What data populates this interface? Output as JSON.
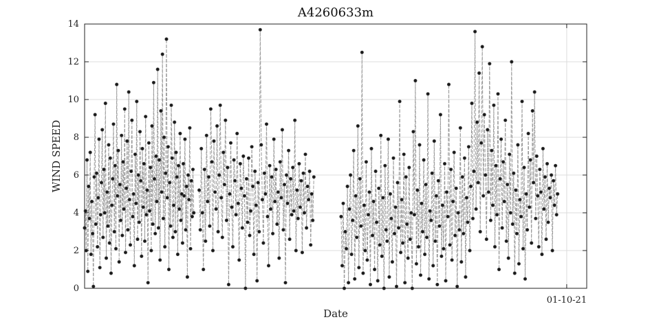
{
  "chart_data": {
    "type": "line",
    "title": "A4260633m",
    "xlabel": "Date",
    "ylabel": "WIND SPEED",
    "ylim": [
      0,
      14
    ],
    "yticks": [
      "0",
      "2",
      "4",
      "6",
      "8",
      "10",
      "12",
      "14"
    ],
    "xticks": [
      "01-10-21"
    ],
    "grid": true,
    "series": [
      {
        "name": "wind speed",
        "line_color": "#9a9a9a",
        "marker_color": "#1a1a1a",
        "segments": [
          {
            "start_day": 0,
            "end_day": 60,
            "values": [
              3.2,
              4.1,
              2.0,
              6.8,
              0.9,
              5.4,
              3.7,
              7.2,
              1.8,
              4.6,
              2.9,
              0.1,
              5.9,
              9.2,
              3.4,
              6.1,
              2.2,
              4.8,
              7.9,
              1.1,
              3.9,
              5.6,
              8.4,
              2.7,
              6.3,
              4.0,
              9.8,
              1.6,
              5.1,
              3.3,
              7.6,
              2.4,
              6.9,
              0.8,
              4.4,
              5.8,
              8.7,
              3.0,
              6.5,
              2.1,
              10.8,
              4.9,
              7.3,
              1.4,
              5.5,
              3.6,
              8.1,
              2.8,
              6.7,
              4.2,
              9.5,
              1.9,
              5.3,
              7.8,
              3.1,
              10.4,
              4.7,
              2.3,
              6.2,
              8.9,
              3.8,
              5.0,
              1.2,
              7.1,
              4.5,
              9.9,
              2.6,
              6.0,
              3.5,
              8.3,
              5.7,
              1.7,
              7.4,
              4.3,
              6.6,
              2.5,
              9.1,
              3.9,
              5.2,
              0.3,
              7.7,
              4.1,
              6.4,
              2.0,
              8.6,
              3.4,
              10.9,
              5.8,
              2.9,
              7.0,
              4.6,
              11.6,
              3.2,
              6.8,
              1.5,
              9.4,
              5.1,
              12.4,
              3.7,
              8.0,
              2.2,
              6.1,
              13.2,
              4.8,
              7.5,
              1.0,
              5.6,
              3.3,
              9.7,
              6.9,
              2.7,
              4.4,
              8.8,
              3.0,
              7.2,
              5.9,
              1.8,
              6.5,
              4.2,
              8.2,
              3.6,
              5.0,
              2.4,
              6.6,
              4.9,
              7.9,
              3.1,
              5.4,
              0.6,
              6.0,
              4.7,
              8.5,
              2.1,
              5.7,
              3.8,
              6.3,
              4.0
            ]
          },
          {
            "start_day": 63,
            "end_day": 126,
            "values": [
              5.2,
              3.1,
              7.4,
              4.0,
              1.0,
              6.3,
              2.5,
              8.1,
              4.6,
              5.9,
              3.3,
              9.5,
              6.7,
              2.0,
              7.8,
              5.1,
              4.2,
              8.6,
              3.0,
              6.0,
              9.7,
              4.8,
              2.7,
              7.2,
              5.5,
              8.9,
              3.6,
              6.4,
              0.2,
              5.0,
              7.7,
              4.3,
              2.2,
              6.8,
              5.7,
              3.9,
              8.2,
              4.5,
              1.5,
              6.6,
              5.3,
              3.2,
              7.0,
              4.9,
              0.0,
              5.8,
              3.5,
              6.9,
              2.8,
              4.1,
              7.5,
              5.4,
              1.8,
              6.2,
              4.4,
              0.4,
              5.6,
              3.0,
              13.7,
              7.6,
              4.7,
              2.4,
              6.1,
              5.0,
              8.7,
              3.8,
              1.2,
              6.5,
              4.2,
              5.9,
              2.9,
              7.9,
              4.6,
              6.3,
              3.4,
              5.1,
              1.6,
              6.7,
              4.8,
              8.4,
              3.1,
              5.5,
              0.3,
              6.0,
              4.5,
              7.3,
              2.6,
              5.8,
              3.9,
              6.4,
              4.1,
              8.9,
              2.0,
              5.2,
              3.7,
              6.6,
              4.3,
              5.7,
              1.9,
              6.1,
              4.0,
              7.1,
              3.2,
              5.4,
              4.7,
              6.2,
              2.3,
              5.0,
              3.6,
              5.9
            ]
          },
          {
            "start_day": 141,
            "end_day": 260,
            "values": [
              3.8,
              1.2,
              4.5,
              0.0,
              3.0,
              2.1,
              5.4,
              0.3,
              4.2,
              6.0,
              1.8,
              3.6,
              7.3,
              0.5,
              4.9,
              2.7,
              8.6,
              1.1,
              5.8,
              3.3,
              12.5,
              0.8,
              4.4,
              2.0,
              6.7,
              1.5,
              3.9,
              5.1,
              0.2,
              7.4,
              2.8,
              4.6,
              1.0,
              6.2,
              3.5,
              0.4,
              5.3,
              2.3,
              8.1,
              1.7,
              4.8,
              0.0,
              6.5,
              3.1,
              2.5,
              7.9,
              0.6,
              5.0,
              3.7,
              1.4,
              6.9,
              2.9,
              4.3,
              0.1,
              5.6,
              3.2,
              9.9,
              1.9,
              4.7,
              2.4,
              7.1,
              0.3,
              5.9,
              3.4,
              1.6,
              6.4,
              2.6,
              4.0,
              0.0,
              8.3,
              3.9,
              11.0,
              1.3,
              5.2,
              2.2,
              7.6,
              0.7,
              4.5,
              3.0,
              6.8,
              1.8,
              5.5,
              2.7,
              10.3,
              0.5,
              4.1,
              3.6,
              6.1,
              1.2,
              7.8,
              2.5,
              4.9,
              0.2,
              5.7,
              3.3,
              9.2,
              1.7,
              4.4,
              2.1,
              6.6,
              0.4,
              5.1,
              3.8,
              10.8,
              2.3,
              6.3,
              1.5,
              4.6,
              7.2,
              2.8,
              5.3,
              0.1,
              4.0,
              3.1,
              8.5,
              1.4,
              5.9,
              2.9,
              6.9,
              0.6,
              4.8,
              3.5,
              7.5,
              2.0,
              5.4,
              9.8,
              3.7,
              6.2,
              13.6,
              4.2,
              8.8,
              5.6,
              11.4,
              3.0,
              7.7,
              12.8,
              4.9,
              9.2,
              6.0,
              2.6,
              8.4,
              5.1,
              11.9,
              3.6,
              7.3,
              4.4,
              9.7,
              2.2,
              6.5,
              3.9,
              10.3,
              1.0,
              5.8,
              7.9,
              3.2,
              6.7,
              4.6,
              8.9,
              2.5,
              5.5,
              1.6,
              7.1,
              4.0,
              12.0,
              3.4,
              6.1,
              0.8,
              5.2,
              2.9,
              7.6,
              1.3,
              4.7,
              3.8,
              9.9,
              2.1,
              6.4,
              0.5,
              5.0,
              3.1,
              8.2,
              4.3,
              6.8,
              2.4,
              9.4,
              5.6,
              10.4,
              3.7,
              7.0,
              4.9,
              2.2,
              6.3,
              5.1,
              1.8,
              7.4,
              4.2,
              5.9,
              2.6,
              6.6,
              3.5,
              5.3,
              4.8,
              6.0,
              2.0,
              5.7,
              4.4,
              6.5,
              3.9,
              5.0
            ]
          }
        ]
      }
    ]
  }
}
